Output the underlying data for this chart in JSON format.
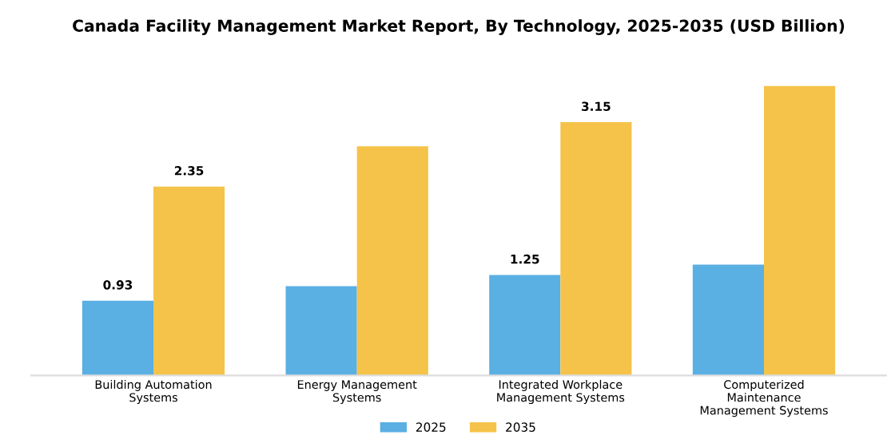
{
  "chart_data": {
    "type": "bar",
    "title": "Canada Facility Management Market Report, By Technology, 2025-2035 (USD Billion)",
    "categories": [
      "Building Automation\nSystems",
      "Energy Management\nSystems",
      "Integrated Workplace\nManagement Systems",
      "Computerized\nMaintenance\nManagement Systems"
    ],
    "series": [
      {
        "name": "2025",
        "color": "#5aafe3",
        "values": [
          0.93,
          1.11,
          1.25,
          1.38
        ],
        "value_labels": [
          "0.93",
          null,
          "1.25",
          null
        ]
      },
      {
        "name": "2035",
        "color": "#f5c34a",
        "values": [
          2.35,
          2.85,
          3.15,
          3.6
        ],
        "value_labels": [
          "2.35",
          null,
          "3.15",
          null
        ]
      }
    ],
    "tick_labels": "x",
    "grid": false,
    "legend": "bottom"
  }
}
